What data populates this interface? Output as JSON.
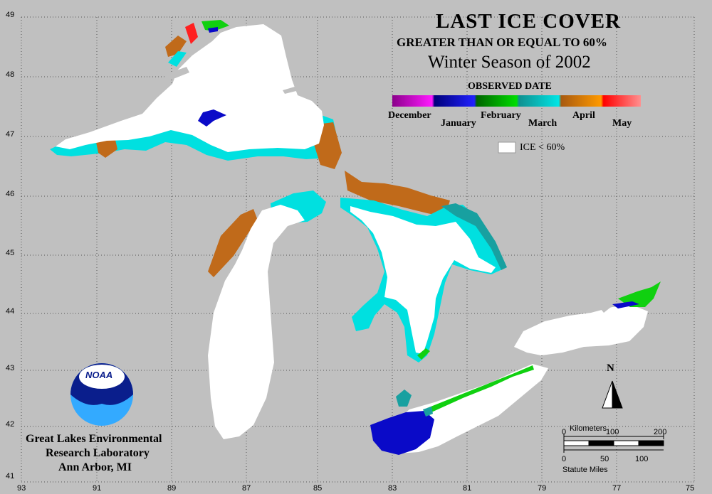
{
  "title": {
    "line1": "LAST ICE COVER",
    "line2": "GREATER THAN OR EQUAL TO 60%",
    "line3": "Winter Season of 2002"
  },
  "legend": {
    "heading": "OBSERVED DATE",
    "months": [
      "December",
      "January",
      "February",
      "March",
      "April",
      "May"
    ],
    "gradient_colors": [
      "#8b008b",
      "#ff1aff",
      "#00007a",
      "#2020ff",
      "#006400",
      "#00dd00",
      "#109090",
      "#00e5e5",
      "#a85a10",
      "#ff9a00",
      "#ff0000",
      "#ff9090"
    ],
    "white_label": "ICE < 60%"
  },
  "axes": {
    "longitude_labels": [
      "93",
      "91",
      "89",
      "87",
      "85",
      "83",
      "81",
      "79",
      "77",
      "75"
    ],
    "latitude_labels": [
      "49",
      "48",
      "47",
      "46",
      "45",
      "44",
      "43",
      "42",
      "41"
    ]
  },
  "scale": {
    "km_title": "Kilometers",
    "km_ticks": [
      "0",
      "100",
      "200"
    ],
    "mi_ticks": [
      "0",
      "50",
      "100"
    ],
    "mi_title": "Statute Miles",
    "north": "N"
  },
  "credit": {
    "logo_text": "NOAA",
    "line1": "Great Lakes Environmental",
    "line2": "Research Laboratory",
    "line3": "Ann Arbor, MI"
  },
  "colors": {
    "background": "#c0c0c0",
    "ice_below_60": "#ffffff",
    "april": "#c06a1a",
    "march": "#00e5e5",
    "march_dark": "#18a0a0",
    "january": "#0a0ac8",
    "february": "#10d010",
    "may": "#ff2020"
  }
}
